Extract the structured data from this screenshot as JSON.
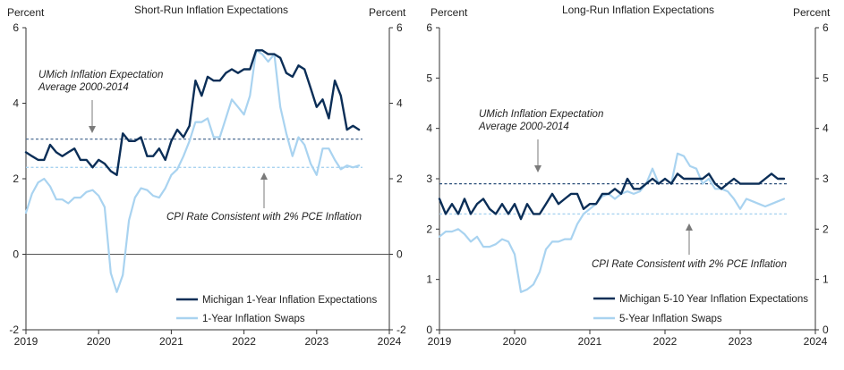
{
  "chart_data": [
    {
      "type": "line",
      "title": "Short-Run Inflation Expectations",
      "ylabel_left": "Percent",
      "ylabel_right": "Percent",
      "ylim": [
        -2,
        6
      ],
      "yticks": [
        -2,
        0,
        2,
        4,
        6
      ],
      "xlim": [
        2019,
        2024
      ],
      "xticks": [
        "2019",
        "2020",
        "2021",
        "2022",
        "2023",
        "2024"
      ],
      "series": [
        {
          "name": "Michigan 1-Year Inflation Expectations",
          "color": "#0b2e57",
          "x": [
            2019.0,
            2019.083,
            2019.167,
            2019.25,
            2019.333,
            2019.417,
            2019.5,
            2019.583,
            2019.667,
            2019.75,
            2019.833,
            2019.917,
            2020.0,
            2020.083,
            2020.167,
            2020.25,
            2020.333,
            2020.417,
            2020.5,
            2020.583,
            2020.667,
            2020.75,
            2020.833,
            2020.917,
            2021.0,
            2021.083,
            2021.167,
            2021.25,
            2021.333,
            2021.417,
            2021.5,
            2021.583,
            2021.667,
            2021.75,
            2021.833,
            2021.917,
            2022.0,
            2022.083,
            2022.167,
            2022.25,
            2022.333,
            2022.417,
            2022.5,
            2022.583,
            2022.667,
            2022.75,
            2022.833,
            2022.917,
            2023.0,
            2023.083,
            2023.167,
            2023.25,
            2023.333,
            2023.417,
            2023.5,
            2023.583
          ],
          "values": [
            2.7,
            2.6,
            2.5,
            2.5,
            2.9,
            2.7,
            2.6,
            2.7,
            2.8,
            2.5,
            2.5,
            2.3,
            2.5,
            2.4,
            2.2,
            2.1,
            3.2,
            3.0,
            3.0,
            3.1,
            2.6,
            2.6,
            2.8,
            2.5,
            3.0,
            3.3,
            3.1,
            3.4,
            4.6,
            4.2,
            4.7,
            4.6,
            4.6,
            4.8,
            4.9,
            4.8,
            4.9,
            4.9,
            5.4,
            5.4,
            5.3,
            5.3,
            5.2,
            4.8,
            4.7,
            5.0,
            4.9,
            4.4,
            3.9,
            4.1,
            3.6,
            4.6,
            4.2,
            3.3,
            3.4,
            3.3
          ]
        },
        {
          "name": "1-Year Inflation Swaps",
          "color": "#a9d3f0",
          "x": [
            2019.0,
            2019.083,
            2019.167,
            2019.25,
            2019.333,
            2019.417,
            2019.5,
            2019.583,
            2019.667,
            2019.75,
            2019.833,
            2019.917,
            2020.0,
            2020.083,
            2020.167,
            2020.25,
            2020.333,
            2020.417,
            2020.5,
            2020.583,
            2020.667,
            2020.75,
            2020.833,
            2020.917,
            2021.0,
            2021.083,
            2021.167,
            2021.25,
            2021.333,
            2021.417,
            2021.5,
            2021.583,
            2021.667,
            2021.75,
            2021.833,
            2021.917,
            2022.0,
            2022.083,
            2022.167,
            2022.25,
            2022.333,
            2022.417,
            2022.5,
            2022.583,
            2022.667,
            2022.75,
            2022.833,
            2022.917,
            2023.0,
            2023.083,
            2023.167,
            2023.25,
            2023.333,
            2023.417,
            2023.5,
            2023.583
          ],
          "values": [
            1.1,
            1.6,
            1.9,
            2.0,
            1.8,
            1.45,
            1.45,
            1.35,
            1.5,
            1.5,
            1.65,
            1.7,
            1.55,
            1.25,
            -0.5,
            -1.0,
            -0.55,
            0.9,
            1.5,
            1.75,
            1.7,
            1.55,
            1.5,
            1.75,
            2.1,
            2.25,
            2.6,
            3.0,
            3.5,
            3.5,
            3.6,
            3.1,
            3.1,
            3.6,
            4.1,
            3.9,
            3.7,
            4.2,
            5.4,
            5.3,
            5.1,
            5.3,
            3.9,
            3.2,
            2.6,
            3.1,
            2.9,
            2.4,
            2.1,
            2.8,
            2.8,
            2.5,
            2.25,
            2.35,
            2.3,
            2.35
          ]
        }
      ],
      "reference_lines": [
        {
          "label": "UMich Inflation Expectation Average 2000-2014",
          "value": 3.05,
          "color": "#4f6f95"
        },
        {
          "label": "CPI Rate Consistent with 2% PCE Inflation",
          "value": 2.3,
          "color": "#a9d3f0"
        }
      ],
      "annotations": [
        {
          "text_lines": [
            "UMich Inflation Expectation",
            "Average 2000-2014"
          ],
          "arrow_to": "UMich reference line"
        },
        {
          "text_lines": [
            "CPI Rate Consistent with 2% PCE Inflation"
          ],
          "arrow_to": "CPI reference line"
        }
      ],
      "legend": "bottom-right"
    },
    {
      "type": "line",
      "title": "Long-Run Inflation Expectations",
      "ylabel_left": "Percent",
      "ylabel_right": "Percent",
      "ylim": [
        0,
        6
      ],
      "yticks": [
        0,
        1,
        2,
        3,
        4,
        5,
        6
      ],
      "xlim": [
        2019,
        2024
      ],
      "xticks": [
        "2019",
        "2020",
        "2021",
        "2022",
        "2023",
        "2024"
      ],
      "series": [
        {
          "name": "Michigan 5-10 Year Inflation Expectations",
          "color": "#0b2e57",
          "x": [
            2019.0,
            2019.083,
            2019.167,
            2019.25,
            2019.333,
            2019.417,
            2019.5,
            2019.583,
            2019.667,
            2019.75,
            2019.833,
            2019.917,
            2020.0,
            2020.083,
            2020.167,
            2020.25,
            2020.333,
            2020.417,
            2020.5,
            2020.583,
            2020.667,
            2020.75,
            2020.833,
            2020.917,
            2021.0,
            2021.083,
            2021.167,
            2021.25,
            2021.333,
            2021.417,
            2021.5,
            2021.583,
            2021.667,
            2021.75,
            2021.833,
            2021.917,
            2022.0,
            2022.083,
            2022.167,
            2022.25,
            2022.333,
            2022.417,
            2022.5,
            2022.583,
            2022.667,
            2022.75,
            2022.833,
            2022.917,
            2023.0,
            2023.083,
            2023.167,
            2023.25,
            2023.333,
            2023.417,
            2023.5,
            2023.583
          ],
          "values": [
            2.6,
            2.3,
            2.5,
            2.3,
            2.6,
            2.3,
            2.5,
            2.6,
            2.4,
            2.3,
            2.5,
            2.3,
            2.5,
            2.2,
            2.5,
            2.3,
            2.3,
            2.5,
            2.7,
            2.5,
            2.6,
            2.7,
            2.7,
            2.4,
            2.5,
            2.5,
            2.7,
            2.7,
            2.8,
            2.7,
            3.0,
            2.8,
            2.8,
            2.9,
            3.0,
            2.9,
            3.0,
            2.9,
            3.1,
            3.0,
            3.0,
            3.0,
            3.0,
            3.1,
            2.9,
            2.8,
            2.9,
            3.0,
            2.9,
            2.9,
            2.9,
            2.9,
            3.0,
            3.1,
            3.0,
            3.0
          ]
        },
        {
          "name": "5-Year Inflation Swaps",
          "color": "#a9d3f0",
          "x": [
            2019.0,
            2019.083,
            2019.167,
            2019.25,
            2019.333,
            2019.417,
            2019.5,
            2019.583,
            2019.667,
            2019.75,
            2019.833,
            2019.917,
            2020.0,
            2020.083,
            2020.167,
            2020.25,
            2020.333,
            2020.417,
            2020.5,
            2020.583,
            2020.667,
            2020.75,
            2020.833,
            2020.917,
            2021.0,
            2021.083,
            2021.167,
            2021.25,
            2021.333,
            2021.417,
            2021.5,
            2021.583,
            2021.667,
            2021.75,
            2021.833,
            2021.917,
            2022.0,
            2022.083,
            2022.167,
            2022.25,
            2022.333,
            2022.417,
            2022.5,
            2022.583,
            2022.667,
            2022.75,
            2022.833,
            2022.917,
            2023.0,
            2023.083,
            2023.167,
            2023.25,
            2023.333,
            2023.417,
            2023.5,
            2023.583
          ],
          "values": [
            1.85,
            1.95,
            1.95,
            2.0,
            1.9,
            1.75,
            1.85,
            1.65,
            1.65,
            1.7,
            1.8,
            1.75,
            1.5,
            0.75,
            0.8,
            0.9,
            1.15,
            1.6,
            1.75,
            1.75,
            1.8,
            1.8,
            2.1,
            2.3,
            2.4,
            2.5,
            2.65,
            2.7,
            2.6,
            2.7,
            2.75,
            2.7,
            2.75,
            2.9,
            3.2,
            2.9,
            3.0,
            2.9,
            3.5,
            3.45,
            3.25,
            3.2,
            2.9,
            3.0,
            2.8,
            2.8,
            2.75,
            2.6,
            2.4,
            2.6,
            2.55,
            2.5,
            2.45,
            2.5,
            2.55,
            2.6
          ]
        }
      ],
      "reference_lines": [
        {
          "label": "UMich Inflation Expectation Average 2000-2014",
          "value": 2.9,
          "color": "#2b4f7a"
        },
        {
          "label": "CPI Rate Consistent with 2% PCE Inflation",
          "value": 2.3,
          "color": "#a9d3f0"
        }
      ],
      "annotations": [
        {
          "text_lines": [
            "UMich Inflation Expectation",
            "Average 2000-2014"
          ],
          "arrow_to": "UMich reference line"
        },
        {
          "text_lines": [
            "CPI Rate Consistent with 2% PCE Inflation"
          ],
          "arrow_to": "CPI reference line"
        }
      ],
      "legend": "bottom-right"
    }
  ]
}
